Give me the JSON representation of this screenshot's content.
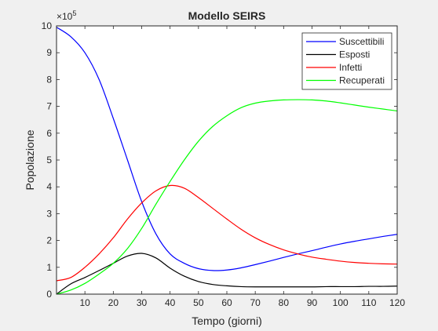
{
  "figure": {
    "background": "#f0f0f0",
    "axes_background": "#ffffff"
  },
  "chart_data": {
    "type": "line",
    "title": "Modello SEIRS",
    "xlabel": "Tempo (giorni)",
    "ylabel": "Popolazione",
    "y_exponent_label": "×10",
    "y_exponent_power": "5",
    "xlim": [
      0,
      120
    ],
    "ylim": [
      0,
      10
    ],
    "xticks": [
      10,
      20,
      30,
      40,
      50,
      60,
      70,
      80,
      90,
      100,
      110,
      120
    ],
    "yticks": [
      0,
      1,
      2,
      3,
      4,
      5,
      6,
      7,
      8,
      9,
      10
    ],
    "grid": false,
    "legend_position": "top-right",
    "series": [
      {
        "name": "Suscettibili",
        "color": "#0000ff",
        "x": [
          0,
          5,
          10,
          15,
          20,
          25,
          30,
          35,
          40,
          45,
          50,
          55,
          60,
          65,
          70,
          75,
          80,
          85,
          90,
          95,
          100,
          105,
          110,
          115,
          120
        ],
        "y": [
          9.95,
          9.6,
          9.0,
          8.0,
          6.55,
          5.0,
          3.45,
          2.25,
          1.5,
          1.15,
          0.95,
          0.88,
          0.9,
          0.98,
          1.1,
          1.23,
          1.37,
          1.5,
          1.62,
          1.75,
          1.87,
          1.97,
          2.06,
          2.15,
          2.23
        ]
      },
      {
        "name": "Esposti",
        "color": "#000000",
        "x": [
          0,
          5,
          10,
          15,
          20,
          25,
          30,
          35,
          40,
          45,
          50,
          55,
          60,
          65,
          70,
          75,
          80,
          85,
          90,
          95,
          100,
          105,
          110,
          115,
          120
        ],
        "y": [
          0.0,
          0.38,
          0.62,
          0.88,
          1.15,
          1.42,
          1.52,
          1.35,
          0.97,
          0.67,
          0.47,
          0.36,
          0.31,
          0.28,
          0.27,
          0.27,
          0.27,
          0.27,
          0.27,
          0.28,
          0.28,
          0.28,
          0.29,
          0.29,
          0.3
        ]
      },
      {
        "name": "Infetti",
        "color": "#ff0000",
        "x": [
          0,
          5,
          10,
          15,
          20,
          25,
          30,
          35,
          40,
          45,
          50,
          55,
          60,
          65,
          70,
          75,
          80,
          85,
          90,
          95,
          100,
          105,
          110,
          115,
          120
        ],
        "y": [
          0.5,
          0.62,
          1.0,
          1.5,
          2.1,
          2.8,
          3.4,
          3.85,
          4.05,
          3.95,
          3.6,
          3.2,
          2.8,
          2.42,
          2.1,
          1.85,
          1.65,
          1.5,
          1.38,
          1.3,
          1.23,
          1.18,
          1.15,
          1.13,
          1.12
        ]
      },
      {
        "name": "Recuperati",
        "color": "#00ff00",
        "x": [
          0,
          5,
          10,
          15,
          20,
          25,
          30,
          35,
          40,
          45,
          50,
          55,
          60,
          65,
          70,
          75,
          80,
          85,
          90,
          95,
          100,
          105,
          110,
          115,
          120
        ],
        "y": [
          0.0,
          0.15,
          0.4,
          0.75,
          1.15,
          1.7,
          2.45,
          3.35,
          4.2,
          5.0,
          5.7,
          6.25,
          6.65,
          6.95,
          7.12,
          7.2,
          7.24,
          7.25,
          7.24,
          7.2,
          7.13,
          7.05,
          6.97,
          6.9,
          6.83
        ]
      }
    ]
  }
}
